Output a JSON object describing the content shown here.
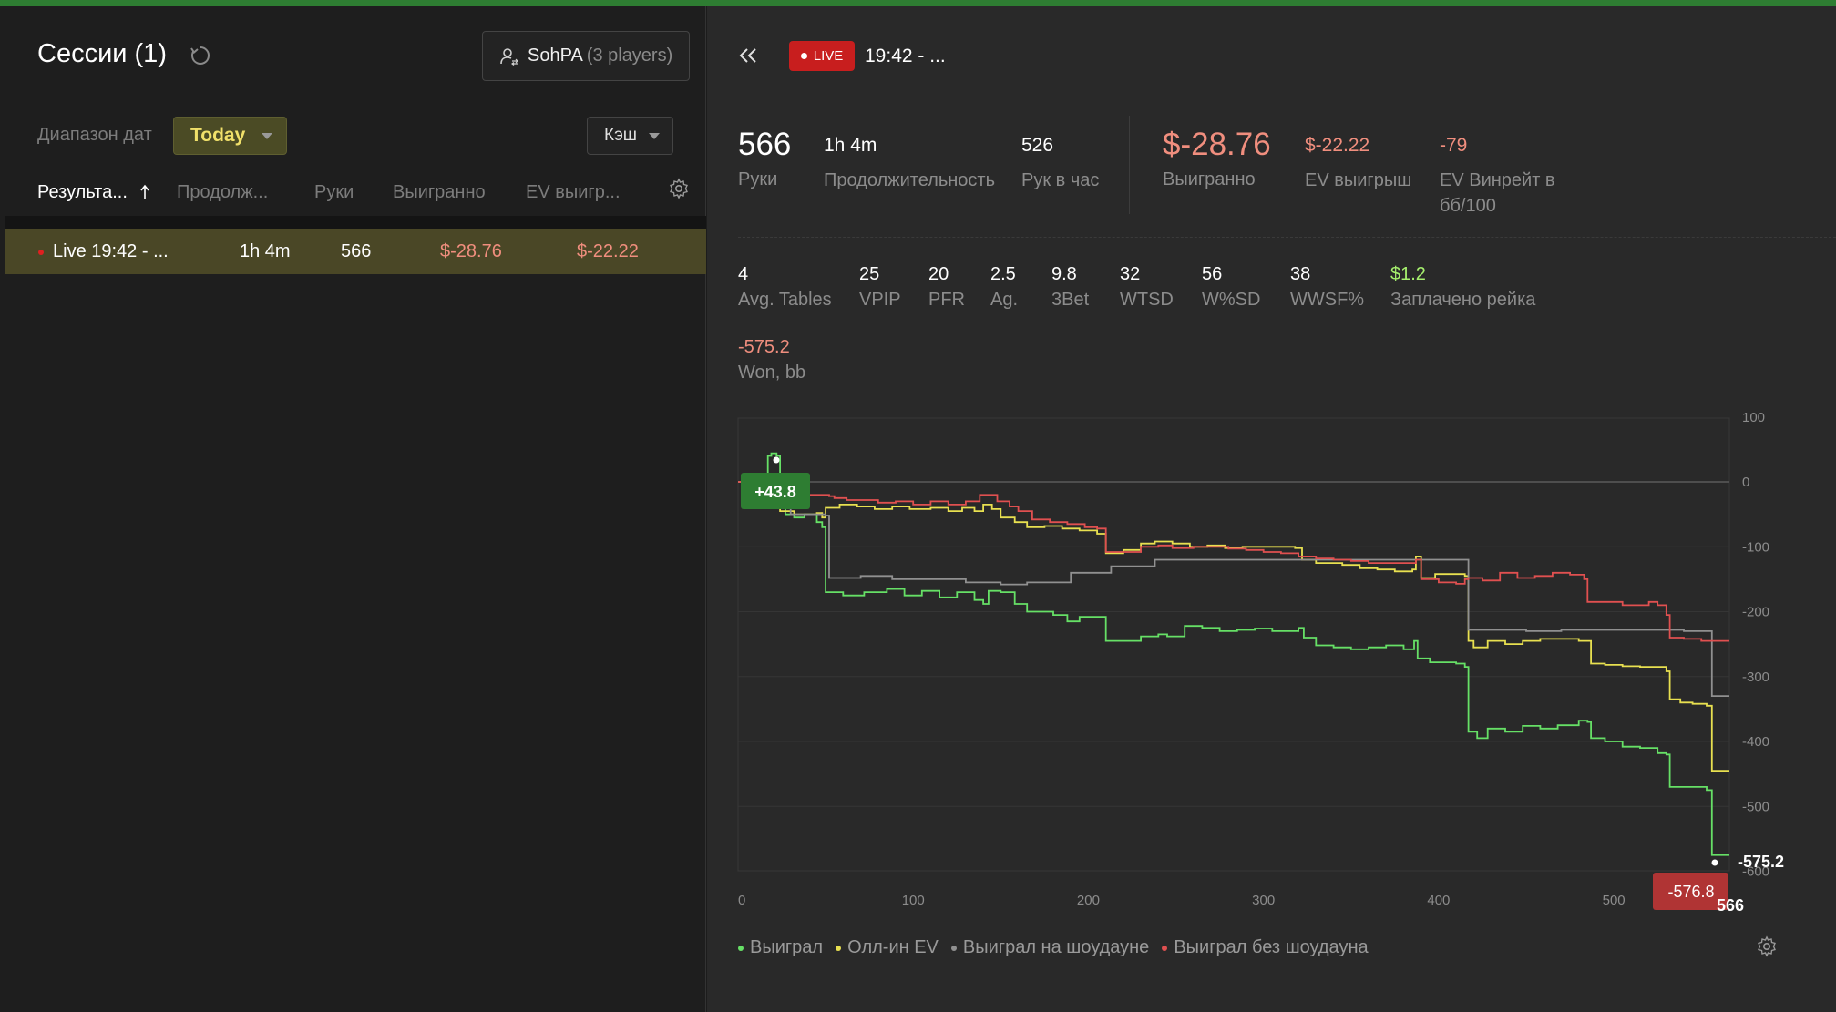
{
  "left": {
    "title": "Сессии (1)",
    "player": {
      "name": "SohPA",
      "count": "(3 players)"
    },
    "date_label": "Диапазон дат",
    "date_value": "Today",
    "game_type": "Кэш",
    "columns": [
      "Результа...",
      "Продолж...",
      "Руки",
      "Выигранно",
      "EV выигр..."
    ],
    "row": {
      "name": "Live 19:42 - ...",
      "duration": "1h 4m",
      "hands": "566",
      "won": "$-28.76",
      "ev_won": "$-22.22"
    }
  },
  "right": {
    "live_label": "LIVE",
    "session_title": "19:42 - ...",
    "stats_top": [
      {
        "value": "566",
        "label": "Руки"
      },
      {
        "value": "1h 4m",
        "label": "Продолжительность"
      },
      {
        "value": "526",
        "label": "Рук в час"
      },
      {
        "value": "$-28.76",
        "label": "Выигранно"
      },
      {
        "value": "$-22.22",
        "label": "EV выигрыш"
      },
      {
        "value": "-79",
        "label": "EV Винрейт в",
        "label2": "бб/100"
      }
    ],
    "stats_row": [
      {
        "value": "4",
        "label": "Avg. Tables"
      },
      {
        "value": "25",
        "label": "VPIP"
      },
      {
        "value": "20",
        "label": "PFR"
      },
      {
        "value": "2.5",
        "label": "Ag."
      },
      {
        "value": "9.8",
        "label": "3Bet"
      },
      {
        "value": "32",
        "label": "WTSD"
      },
      {
        "value": "56",
        "label": "W%SD"
      },
      {
        "value": "38",
        "label": "WWSF%"
      },
      {
        "value": "$1.2",
        "label": "Заплачено рейка"
      }
    ],
    "won_bb": {
      "value": "-575.2",
      "label": "Won, bb"
    }
  },
  "colors": {
    "accent_green": "#2e7d32",
    "negative": "#f08e7e",
    "positive": "#a6f06e",
    "live_red": "#c81e1e"
  },
  "chart_data": {
    "type": "line",
    "xlim": [
      0,
      566
    ],
    "ylim": [
      -600,
      100
    ],
    "x_ticks": [
      0,
      100,
      200,
      300,
      400,
      500
    ],
    "y_ticks": [
      100,
      0,
      -100,
      -200,
      -300,
      -400,
      -500,
      -600
    ],
    "x_end_label": "566",
    "max_label": "+43.8",
    "min_label": "-576.8",
    "end_label": "-575.2",
    "series": [
      {
        "name": "Выиграл",
        "color": "#66e066",
        "points": [
          [
            0,
            0
          ],
          [
            15,
            0
          ],
          [
            17,
            40
          ],
          [
            19,
            44
          ],
          [
            22,
            40
          ],
          [
            24,
            -30
          ],
          [
            27,
            -50
          ],
          [
            32,
            -55
          ],
          [
            38,
            -50
          ],
          [
            45,
            -62
          ],
          [
            48,
            -70
          ],
          [
            50,
            -170
          ],
          [
            60,
            -175
          ],
          [
            72,
            -170
          ],
          [
            85,
            -165
          ],
          [
            95,
            -175
          ],
          [
            105,
            -168
          ],
          [
            115,
            -178
          ],
          [
            125,
            -170
          ],
          [
            135,
            -182
          ],
          [
            140,
            -188
          ],
          [
            143,
            -168
          ],
          [
            150,
            -170
          ],
          [
            158,
            -188
          ],
          [
            165,
            -200
          ],
          [
            172,
            -200
          ],
          [
            180,
            -205
          ],
          [
            188,
            -215
          ],
          [
            195,
            -208
          ],
          [
            205,
            -208
          ],
          [
            210,
            -245
          ],
          [
            220,
            -245
          ],
          [
            230,
            -238
          ],
          [
            240,
            -235
          ],
          [
            245,
            -238
          ],
          [
            255,
            -222
          ],
          [
            265,
            -225
          ],
          [
            275,
            -230
          ],
          [
            285,
            -228
          ],
          [
            295,
            -226
          ],
          [
            305,
            -230
          ],
          [
            320,
            -225
          ],
          [
            323,
            -240
          ],
          [
            330,
            -252
          ],
          [
            340,
            -255
          ],
          [
            350,
            -258
          ],
          [
            360,
            -255
          ],
          [
            370,
            -252
          ],
          [
            380,
            -258
          ],
          [
            386,
            -245
          ],
          [
            388,
            -272
          ],
          [
            395,
            -278
          ],
          [
            410,
            -280
          ],
          [
            415,
            -285
          ],
          [
            417,
            -385
          ],
          [
            422,
            -395
          ],
          [
            428,
            -380
          ],
          [
            438,
            -385
          ],
          [
            448,
            -376
          ],
          [
            458,
            -380
          ],
          [
            468,
            -375
          ],
          [
            480,
            -368
          ],
          [
            485,
            -370
          ],
          [
            487,
            -395
          ],
          [
            495,
            -400
          ],
          [
            505,
            -408
          ],
          [
            515,
            -410
          ],
          [
            525,
            -418
          ],
          [
            530,
            -420
          ],
          [
            532,
            -470
          ],
          [
            538,
            -470
          ],
          [
            545,
            -470
          ],
          [
            553,
            -475
          ],
          [
            556,
            -575
          ],
          [
            566,
            -575
          ]
        ]
      },
      {
        "name": "Олл-ин EV",
        "color": "#e8e050",
        "points": [
          [
            0,
            0
          ],
          [
            17,
            0
          ],
          [
            19,
            10
          ],
          [
            24,
            -45
          ],
          [
            32,
            -50
          ],
          [
            45,
            -48
          ],
          [
            48,
            -55
          ],
          [
            50,
            -40
          ],
          [
            58,
            -35
          ],
          [
            68,
            -38
          ],
          [
            78,
            -42
          ],
          [
            88,
            -38
          ],
          [
            98,
            -42
          ],
          [
            110,
            -40
          ],
          [
            120,
            -45
          ],
          [
            128,
            -40
          ],
          [
            135,
            -45
          ],
          [
            140,
            -35
          ],
          [
            145,
            -42
          ],
          [
            150,
            -55
          ],
          [
            158,
            -62
          ],
          [
            165,
            -70
          ],
          [
            175,
            -68
          ],
          [
            185,
            -72
          ],
          [
            195,
            -75
          ],
          [
            205,
            -80
          ],
          [
            210,
            -110
          ],
          [
            220,
            -105
          ],
          [
            230,
            -95
          ],
          [
            238,
            -92
          ],
          [
            248,
            -95
          ],
          [
            258,
            -100
          ],
          [
            268,
            -98
          ],
          [
            278,
            -102
          ],
          [
            288,
            -100
          ],
          [
            300,
            -100
          ],
          [
            318,
            -102
          ],
          [
            322,
            -120
          ],
          [
            330,
            -125
          ],
          [
            345,
            -128
          ],
          [
            355,
            -133
          ],
          [
            365,
            -135
          ],
          [
            375,
            -138
          ],
          [
            385,
            -135
          ],
          [
            387,
            -115
          ],
          [
            390,
            -148
          ],
          [
            398,
            -142
          ],
          [
            408,
            -142
          ],
          [
            415,
            -145
          ],
          [
            417,
            -245
          ],
          [
            420,
            -255
          ],
          [
            428,
            -245
          ],
          [
            438,
            -250
          ],
          [
            448,
            -245
          ],
          [
            458,
            -242
          ],
          [
            468,
            -242
          ],
          [
            480,
            -245
          ],
          [
            485,
            -245
          ],
          [
            487,
            -280
          ],
          [
            495,
            -282
          ],
          [
            505,
            -284
          ],
          [
            515,
            -285
          ],
          [
            525,
            -285
          ],
          [
            530,
            -292
          ],
          [
            532,
            -335
          ],
          [
            538,
            -340
          ],
          [
            545,
            -342
          ],
          [
            553,
            -345
          ],
          [
            556,
            -445
          ],
          [
            566,
            -445
          ]
        ]
      },
      {
        "name": "Выиграл на шоудауне",
        "color": "#909090",
        "points": [
          [
            0,
            0
          ],
          [
            17,
            0
          ],
          [
            24,
            -40
          ],
          [
            30,
            -50
          ],
          [
            50,
            -52
          ],
          [
            52,
            -148
          ],
          [
            65,
            -148
          ],
          [
            70,
            -145
          ],
          [
            82,
            -145
          ],
          [
            88,
            -150
          ],
          [
            100,
            -150
          ],
          [
            110,
            -150
          ],
          [
            125,
            -150
          ],
          [
            130,
            -155
          ],
          [
            140,
            -155
          ],
          [
            150,
            -158
          ],
          [
            165,
            -155
          ],
          [
            185,
            -155
          ],
          [
            190,
            -140
          ],
          [
            200,
            -140
          ],
          [
            210,
            -140
          ],
          [
            213,
            -130
          ],
          [
            220,
            -130
          ],
          [
            235,
            -130
          ],
          [
            238,
            -120
          ],
          [
            270,
            -120
          ],
          [
            300,
            -120
          ],
          [
            340,
            -120
          ],
          [
            380,
            -120
          ],
          [
            415,
            -120
          ],
          [
            417,
            -228
          ],
          [
            430,
            -228
          ],
          [
            450,
            -230
          ],
          [
            470,
            -228
          ],
          [
            500,
            -228
          ],
          [
            540,
            -230
          ],
          [
            553,
            -230
          ],
          [
            556,
            -330
          ],
          [
            566,
            -330
          ]
        ]
      },
      {
        "name": "Выиграл без шоудауна",
        "color": "#e05050",
        "points": [
          [
            0,
            0
          ],
          [
            15,
            0
          ],
          [
            18,
            10
          ],
          [
            25,
            -10
          ],
          [
            35,
            -20
          ],
          [
            45,
            -20
          ],
          [
            52,
            -22
          ],
          [
            55,
            -25
          ],
          [
            62,
            -28
          ],
          [
            70,
            -28
          ],
          [
            80,
            -32
          ],
          [
            90,
            -30
          ],
          [
            100,
            -35
          ],
          [
            110,
            -30
          ],
          [
            120,
            -35
          ],
          [
            130,
            -30
          ],
          [
            135,
            -30
          ],
          [
            138,
            -20
          ],
          [
            145,
            -20
          ],
          [
            148,
            -30
          ],
          [
            155,
            -38
          ],
          [
            160,
            -45
          ],
          [
            168,
            -58
          ],
          [
            178,
            -62
          ],
          [
            188,
            -65
          ],
          [
            198,
            -70
          ],
          [
            205,
            -72
          ],
          [
            210,
            -108
          ],
          [
            220,
            -108
          ],
          [
            230,
            -100
          ],
          [
            240,
            -98
          ],
          [
            248,
            -102
          ],
          [
            260,
            -100
          ],
          [
            270,
            -100
          ],
          [
            280,
            -103
          ],
          [
            290,
            -105
          ],
          [
            300,
            -108
          ],
          [
            310,
            -110
          ],
          [
            320,
            -115
          ],
          [
            330,
            -118
          ],
          [
            340,
            -120
          ],
          [
            350,
            -122
          ],
          [
            360,
            -125
          ],
          [
            370,
            -125
          ],
          [
            380,
            -125
          ],
          [
            385,
            -125
          ],
          [
            387,
            -120
          ],
          [
            390,
            -150
          ],
          [
            400,
            -155
          ],
          [
            410,
            -157
          ],
          [
            415,
            -150
          ],
          [
            417,
            -148
          ],
          [
            425,
            -152
          ],
          [
            435,
            -140
          ],
          [
            445,
            -148
          ],
          [
            455,
            -145
          ],
          [
            465,
            -140
          ],
          [
            475,
            -143
          ],
          [
            483,
            -150
          ],
          [
            485,
            -185
          ],
          [
            495,
            -185
          ],
          [
            505,
            -190
          ],
          [
            515,
            -190
          ],
          [
            520,
            -185
          ],
          [
            525,
            -190
          ],
          [
            530,
            -205
          ],
          [
            532,
            -240
          ],
          [
            540,
            -242
          ],
          [
            550,
            -245
          ],
          [
            556,
            -245
          ],
          [
            566,
            -245
          ]
        ]
      }
    ]
  }
}
